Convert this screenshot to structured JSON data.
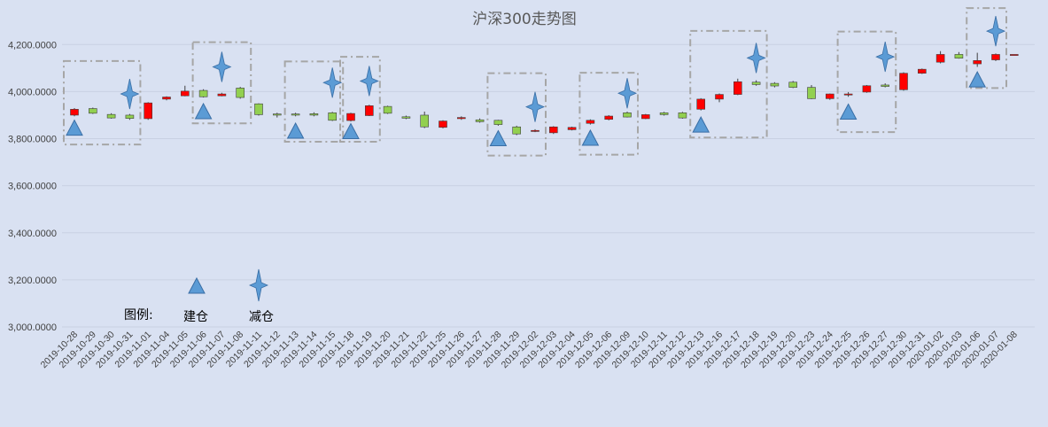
{
  "chart_data": {
    "type": "candlestick",
    "title": "沪深300走势图",
    "ylim": [
      3000,
      4200
    ],
    "yticks": [
      3000,
      3200,
      3400,
      3600,
      3800,
      4000,
      4200
    ],
    "ytick_labels": [
      "3,000.0000",
      "3,200.0000",
      "3,400.0000",
      "3,600.0000",
      "3,800.0000",
      "4,000.0000",
      "4,200.0000"
    ],
    "grid": true,
    "colors": {
      "up": "#ff0000",
      "down": "#92d050",
      "marker": "#5b9bd5",
      "box": "#a6a6a6",
      "grid": "#c9d1e3"
    },
    "legend": {
      "label": "图例:",
      "build": "建仓",
      "reduce": "减仓"
    },
    "categories": [
      "2019-10-28",
      "2019-10-29",
      "2019-10-30",
      "2019-10-31",
      "2019-11-01",
      "2019-11-04",
      "2019-11-05",
      "2019-11-06",
      "2019-11-07",
      "2019-11-08",
      "2019-11-11",
      "2019-11-12",
      "2019-11-13",
      "2019-11-14",
      "2019-11-15",
      "2019-11-18",
      "2019-11-19",
      "2019-11-20",
      "2019-11-21",
      "2019-11-22",
      "2019-11-25",
      "2019-11-26",
      "2019-11-27",
      "2019-11-28",
      "2019-11-29",
      "2019-12-02",
      "2019-12-03",
      "2019-12-04",
      "2019-12-05",
      "2019-12-06",
      "2019-12-09",
      "2019-12-10",
      "2019-12-11",
      "2019-12-12",
      "2019-12-13",
      "2019-12-16",
      "2019-12-17",
      "2019-12-18",
      "2019-12-19",
      "2019-12-20",
      "2019-12-23",
      "2019-12-24",
      "2019-12-25",
      "2019-12-26",
      "2019-12-27",
      "2019-12-30",
      "2019-12-31",
      "2020-01-02",
      "2020-01-03",
      "2020-01-06",
      "2020-01-07",
      "2020-01-08"
    ],
    "candles": [
      {
        "o": 3900,
        "c": 3925,
        "h": 3930,
        "l": 3895
      },
      {
        "o": 3928,
        "c": 3908,
        "h": 3932,
        "l": 3905
      },
      {
        "o": 3903,
        "c": 3888,
        "h": 3908,
        "l": 3885
      },
      {
        "o": 3900,
        "c": 3886,
        "h": 3905,
        "l": 3880
      },
      {
        "o": 3885,
        "c": 3952,
        "h": 3955,
        "l": 3880
      },
      {
        "o": 3968,
        "c": 3977,
        "h": 3980,
        "l": 3963
      },
      {
        "o": 3982,
        "c": 4002,
        "h": 4025,
        "l": 3980
      },
      {
        "o": 4005,
        "c": 3978,
        "h": 4010,
        "l": 3975
      },
      {
        "o": 3982,
        "c": 3990,
        "h": 3995,
        "l": 3980
      },
      {
        "o": 4015,
        "c": 3975,
        "h": 4020,
        "l": 3970
      },
      {
        "o": 3948,
        "c": 3902,
        "h": 3950,
        "l": 3898
      },
      {
        "o": 3905,
        "c": 3900,
        "h": 3910,
        "l": 3890
      },
      {
        "o": 3905,
        "c": 3900,
        "h": 3910,
        "l": 3895
      },
      {
        "o": 3906,
        "c": 3900,
        "h": 3912,
        "l": 3895
      },
      {
        "o": 3910,
        "c": 3878,
        "h": 3914,
        "l": 3875
      },
      {
        "o": 3877,
        "c": 3907,
        "h": 3910,
        "l": 3873
      },
      {
        "o": 3898,
        "c": 3940,
        "h": 3944,
        "l": 3896
      },
      {
        "o": 3937,
        "c": 3908,
        "h": 3940,
        "l": 3905
      },
      {
        "o": 3893,
        "c": 3887,
        "h": 3898,
        "l": 3883
      },
      {
        "o": 3900,
        "c": 3850,
        "h": 3915,
        "l": 3845
      },
      {
        "o": 3848,
        "c": 3875,
        "h": 3878,
        "l": 3844
      },
      {
        "o": 3885,
        "c": 3890,
        "h": 3895,
        "l": 3880
      },
      {
        "o": 3880,
        "c": 3872,
        "h": 3886,
        "l": 3868
      },
      {
        "o": 3878,
        "c": 3860,
        "h": 3880,
        "l": 3855
      },
      {
        "o": 3850,
        "c": 3820,
        "h": 3855,
        "l": 3815
      },
      {
        "o": 3832,
        "c": 3835,
        "h": 3840,
        "l": 3828
      },
      {
        "o": 3825,
        "c": 3850,
        "h": 3853,
        "l": 3820
      },
      {
        "o": 3838,
        "c": 3848,
        "h": 3851,
        "l": 3835
      },
      {
        "o": 3865,
        "c": 3878,
        "h": 3882,
        "l": 3860
      },
      {
        "o": 3882,
        "c": 3896,
        "h": 3900,
        "l": 3878
      },
      {
        "o": 3910,
        "c": 3892,
        "h": 3915,
        "l": 3890
      },
      {
        "o": 3885,
        "c": 3902,
        "h": 3905,
        "l": 3883
      },
      {
        "o": 3910,
        "c": 3902,
        "h": 3914,
        "l": 3898
      },
      {
        "o": 3910,
        "c": 3888,
        "h": 3914,
        "l": 3885
      },
      {
        "o": 3925,
        "c": 3968,
        "h": 3972,
        "l": 3920
      },
      {
        "o": 3968,
        "c": 3988,
        "h": 3992,
        "l": 3955
      },
      {
        "o": 3988,
        "c": 4042,
        "h": 4055,
        "l": 3985
      },
      {
        "o": 4040,
        "c": 4030,
        "h": 4048,
        "l": 4025
      },
      {
        "o": 4035,
        "c": 4024,
        "h": 4040,
        "l": 4018
      },
      {
        "o": 4040,
        "c": 4018,
        "h": 4045,
        "l": 4015
      },
      {
        "o": 4018,
        "c": 3970,
        "h": 4028,
        "l": 3968
      },
      {
        "o": 3970,
        "c": 3990,
        "h": 3992,
        "l": 3965
      },
      {
        "o": 3986,
        "c": 3990,
        "h": 3998,
        "l": 3978
      },
      {
        "o": 3998,
        "c": 4025,
        "h": 4028,
        "l": 3995
      },
      {
        "o": 4028,
        "c": 4022,
        "h": 4035,
        "l": 4018
      },
      {
        "o": 4008,
        "c": 4078,
        "h": 4082,
        "l": 4004
      },
      {
        "o": 4078,
        "c": 4095,
        "h": 4098,
        "l": 4075
      },
      {
        "o": 4125,
        "c": 4158,
        "h": 4172,
        "l": 4120
      },
      {
        "o": 4158,
        "c": 4142,
        "h": 4168,
        "l": 4140
      },
      {
        "o": 4118,
        "c": 4132,
        "h": 4165,
        "l": 4105
      },
      {
        "o": 4135,
        "c": 4158,
        "h": 4162,
        "l": 4130
      },
      {
        "o": 4158,
        "c": 4158,
        "h": 4158,
        "l": 4158
      }
    ],
    "build_markers": [
      {
        "x": "2019-10-28",
        "y": 3845
      },
      {
        "x": "2019-11-06",
        "y": 3915
      },
      {
        "x": "2019-11-13",
        "y": 3832
      },
      {
        "x": "2019-11-18",
        "y": 3830
      },
      {
        "x": "2019-11-28",
        "y": 3800
      },
      {
        "x": "2019-12-05",
        "y": 3802
      },
      {
        "x": "2019-12-13",
        "y": 3858
      },
      {
        "x": "2019-12-25",
        "y": 3913
      },
      {
        "x": "2020-01-06",
        "y": 4050
      }
    ],
    "reduce_markers": [
      {
        "x": "2019-10-31",
        "y": 3990
      },
      {
        "x": "2019-11-07",
        "y": 4105
      },
      {
        "x": "2019-11-15",
        "y": 4038
      },
      {
        "x": "2019-11-19",
        "y": 4045
      },
      {
        "x": "2019-12-02",
        "y": 3935
      },
      {
        "x": "2019-12-09",
        "y": 3993
      },
      {
        "x": "2019-12-18",
        "y": 4143
      },
      {
        "x": "2019-12-27",
        "y": 4148
      },
      {
        "x": "2020-01-07",
        "y": 4257
      }
    ],
    "boxes": [
      {
        "from": "2019-10-28",
        "to": "2019-10-31",
        "ymin": 3775,
        "ymax": 4130
      },
      {
        "from": "2019-11-06",
        "to": "2019-11-08",
        "ymin": 3865,
        "ymax": 4210
      },
      {
        "from": "2019-11-13",
        "to": "2019-11-15",
        "ymin": 3787,
        "ymax": 4128
      },
      {
        "from": "2019-11-18",
        "to": "2019-11-19",
        "ymin": 3787,
        "ymax": 4148
      },
      {
        "from": "2019-11-28",
        "to": "2019-12-02",
        "ymin": 3728,
        "ymax": 4078
      },
      {
        "from": "2019-12-05",
        "to": "2019-12-09",
        "ymin": 3732,
        "ymax": 4080
      },
      {
        "from": "2019-12-13",
        "to": "2019-12-18",
        "ymin": 3805,
        "ymax": 4258
      },
      {
        "from": "2019-12-25",
        "to": "2019-12-27",
        "ymin": 3828,
        "ymax": 4255
      },
      {
        "from": "2020-01-06",
        "to": "2020-01-07",
        "ymin": 4015,
        "ymax": 4355
      }
    ]
  }
}
